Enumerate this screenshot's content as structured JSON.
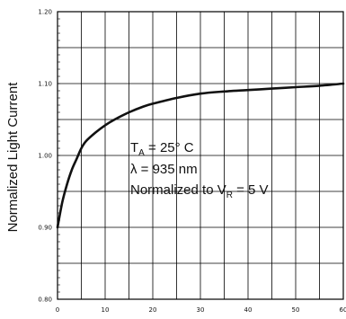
{
  "chart_data": {
    "type": "line",
    "ylabel": "Normalized Light Current",
    "xlabel": "",
    "xlim": [
      0,
      60
    ],
    "ylim": [
      0.8,
      1.2
    ],
    "x_ticks": [
      "0",
      "10",
      "20",
      "30",
      "40",
      "50",
      "60"
    ],
    "y_ticks": [
      "0.80",
      "0.90",
      "1.00",
      "1.10",
      "1.20"
    ],
    "grid": true,
    "series": [
      {
        "x": [
          0,
          1,
          2,
          3,
          4,
          5,
          6,
          8,
          10,
          12,
          15,
          18,
          20,
          25,
          30,
          35,
          40,
          45,
          50,
          55,
          60
        ],
        "y": [
          0.9,
          0.935,
          0.96,
          0.98,
          0.995,
          1.01,
          1.02,
          1.032,
          1.042,
          1.05,
          1.06,
          1.068,
          1.072,
          1.08,
          1.086,
          1.089,
          1.091,
          1.093,
          1.095,
          1.097,
          1.1
        ]
      }
    ],
    "annotations": {
      "line1": {
        "main": "T",
        "sub": "A",
        "rest": " = 25° C"
      },
      "line2": "λ = 935 nm",
      "line3": {
        "main": "Normalized to V",
        "sub": "R",
        "rest": " = 5  V"
      }
    },
    "line_color": "#111111",
    "grid_color": "#000000"
  }
}
